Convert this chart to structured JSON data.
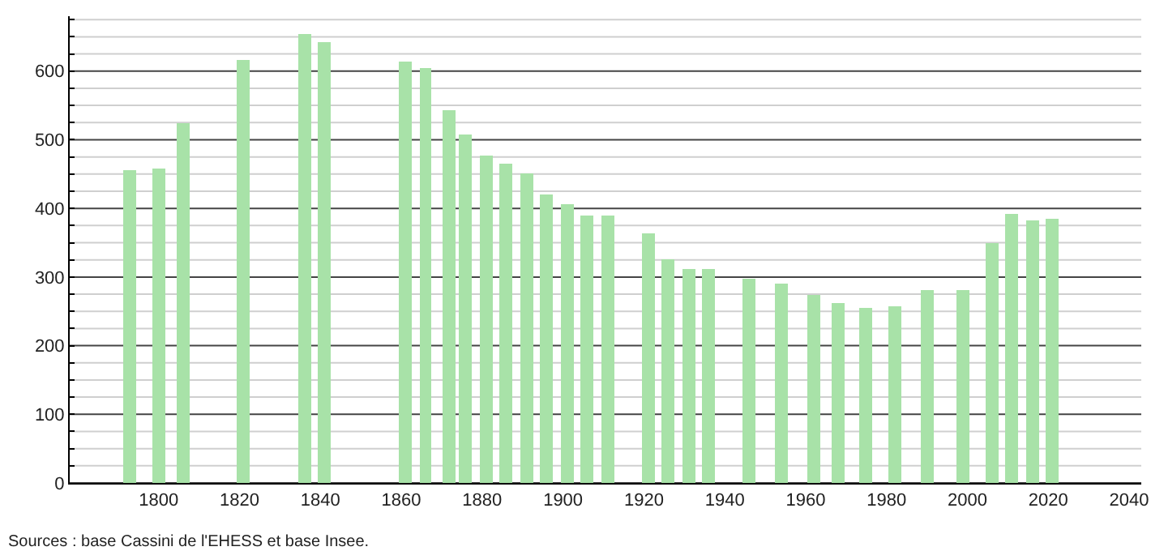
{
  "chart_data": {
    "type": "bar",
    "x": [
      1793,
      1800,
      1806,
      1821,
      1836,
      1841,
      1861,
      1866,
      1872,
      1876,
      1881,
      1886,
      1891,
      1896,
      1901,
      1906,
      1911,
      1921,
      1926,
      1931,
      1936,
      1946,
      1954,
      1962,
      1968,
      1975,
      1982,
      1990,
      1999,
      2006,
      2011,
      2016,
      2021
    ],
    "values": [
      455,
      458,
      525,
      616,
      654,
      643,
      615,
      605,
      542,
      507,
      476,
      465,
      450,
      421,
      405,
      390,
      390,
      363,
      325,
      312,
      312,
      298,
      291,
      273,
      263,
      254,
      258,
      281,
      281,
      349,
      392,
      383,
      385
    ],
    "color": "#a8e2a8",
    "xlim": [
      1778,
      2043
    ],
    "xticks": [
      1800,
      1820,
      1840,
      1860,
      1880,
      1900,
      1920,
      1940,
      1960,
      1980,
      2000,
      2020,
      2040
    ],
    "ylim": [
      0,
      680
    ],
    "yticks": [
      0,
      {
        "value": 25,
        "label": null
      },
      {
        "value": 50,
        "label": null
      },
      {
        "value": 75,
        "label": null
      },
      100,
      {
        "value": 125,
        "label": null
      },
      {
        "value": 150,
        "label": null
      },
      {
        "value": 175,
        "label": null
      },
      200,
      {
        "value": 225,
        "label": null
      },
      {
        "value": 250,
        "label": null
      },
      {
        "value": 275,
        "label": null
      },
      300,
      {
        "value": 325,
        "label": null
      },
      {
        "value": 350,
        "label": null
      },
      {
        "value": 375,
        "label": null
      },
      400,
      {
        "value": 425,
        "label": null
      },
      {
        "value": 450,
        "label": null
      },
      {
        "value": 475,
        "label": null
      },
      500,
      {
        "value": 525,
        "label": null
      },
      {
        "value": 550,
        "label": null
      },
      {
        "value": 575,
        "label": null
      },
      600,
      {
        "value": 625,
        "label": null
      },
      {
        "value": 650,
        "label": null
      },
      {
        "value": 675,
        "label": null
      }
    ],
    "grid": "y",
    "annotations": [
      "Sources : base Cassini de l'EHESS et base Insee."
    ]
  }
}
